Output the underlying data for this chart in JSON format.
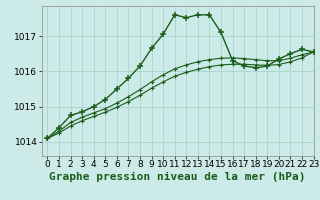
{
  "title": "Graphe pression niveau de la mer (hPa)",
  "bg_color": "#cceae7",
  "grid_color": "#aad4cc",
  "line_color": "#1a5c1a",
  "xlim": [
    -0.5,
    23
  ],
  "ylim": [
    1013.6,
    1017.85
  ],
  "yticks": [
    1014,
    1015,
    1016,
    1017
  ],
  "xticks": [
    0,
    1,
    2,
    3,
    4,
    5,
    6,
    7,
    8,
    9,
    10,
    11,
    12,
    13,
    14,
    15,
    16,
    17,
    18,
    19,
    20,
    21,
    22,
    23
  ],
  "series1_x": [
    0,
    1,
    2,
    3,
    4,
    5,
    6,
    7,
    8,
    9,
    10,
    11,
    12,
    13,
    14,
    15,
    16,
    17,
    18,
    19,
    20,
    21,
    22,
    23
  ],
  "series1_y": [
    1014.1,
    1014.4,
    1014.75,
    1014.85,
    1015.0,
    1015.2,
    1015.5,
    1015.8,
    1016.15,
    1016.65,
    1017.05,
    1017.6,
    1017.52,
    1017.6,
    1017.6,
    1017.1,
    1016.3,
    1016.15,
    1016.1,
    1016.15,
    1016.35,
    1016.5,
    1016.62,
    1016.55
  ],
  "series2_x": [
    0,
    1,
    2,
    3,
    4,
    5,
    6,
    7,
    8,
    9,
    10,
    11,
    12,
    13,
    14,
    15,
    16,
    17,
    18,
    19,
    20,
    21,
    22,
    23
  ],
  "series2_y": [
    1014.1,
    1014.3,
    1014.55,
    1014.7,
    1014.82,
    1014.94,
    1015.1,
    1015.28,
    1015.48,
    1015.7,
    1015.9,
    1016.07,
    1016.18,
    1016.27,
    1016.33,
    1016.37,
    1016.38,
    1016.36,
    1016.33,
    1016.3,
    1016.3,
    1016.37,
    1016.47,
    1016.55
  ],
  "series3_x": [
    0,
    1,
    2,
    3,
    4,
    5,
    6,
    7,
    8,
    9,
    10,
    11,
    12,
    13,
    14,
    15,
    16,
    17,
    18,
    19,
    20,
    21,
    22,
    23
  ],
  "series3_y": [
    1014.1,
    1014.25,
    1014.45,
    1014.6,
    1014.72,
    1014.84,
    1014.98,
    1015.14,
    1015.32,
    1015.52,
    1015.7,
    1015.86,
    1015.97,
    1016.06,
    1016.13,
    1016.18,
    1016.2,
    1016.2,
    1016.18,
    1016.17,
    1016.19,
    1016.27,
    1016.38,
    1016.55
  ],
  "xlabel_fontsize": 8,
  "tick_fontsize": 6.5
}
